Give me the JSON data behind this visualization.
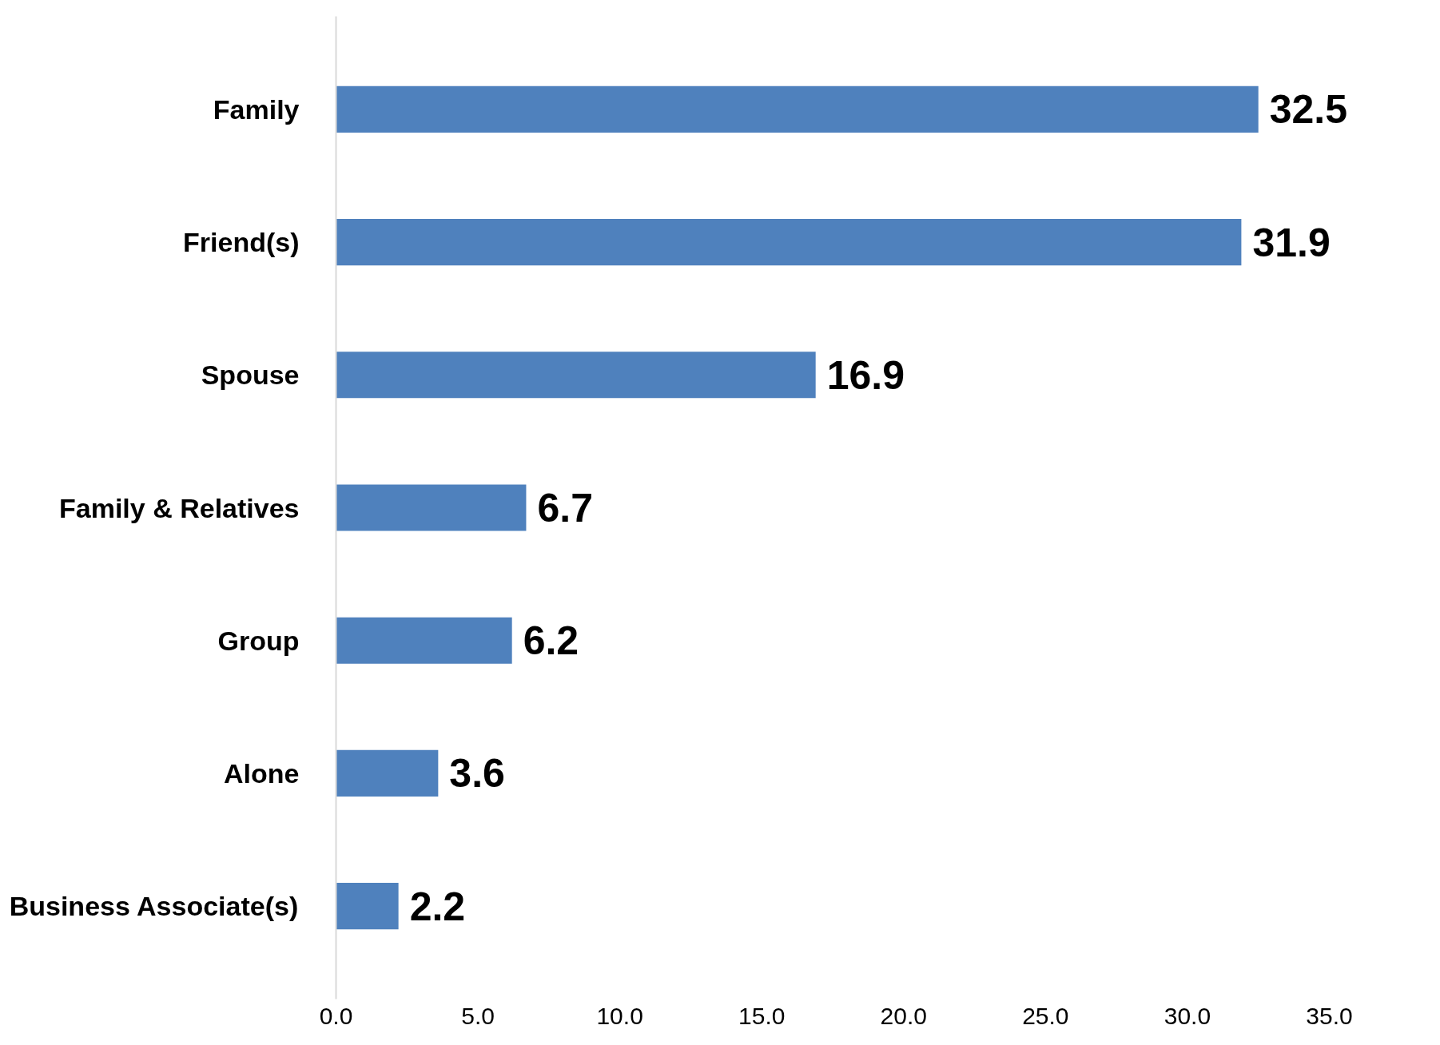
{
  "chart_data": {
    "type": "bar",
    "orientation": "horizontal",
    "categories": [
      "Family",
      "Friend(s)",
      "Spouse",
      "Family & Relatives",
      "Group",
      "Alone",
      "Business Associate(s)"
    ],
    "values": [
      32.5,
      31.9,
      16.9,
      6.7,
      6.2,
      3.6,
      2.2
    ],
    "color": "#4f81bd",
    "data_labels": true,
    "grid": false,
    "xlim": [
      0,
      35
    ],
    "xticks": [
      {
        "value": 0,
        "label": "0.0"
      },
      {
        "value": 5,
        "label": "5.0"
      },
      {
        "value": 10,
        "label": "10.0"
      },
      {
        "value": 15,
        "label": "15.0"
      },
      {
        "value": 20,
        "label": "20.0"
      },
      {
        "value": 25,
        "label": "25.0"
      },
      {
        "value": 30,
        "label": "30.0"
      },
      {
        "value": 35,
        "label": "35.0"
      }
    ]
  }
}
